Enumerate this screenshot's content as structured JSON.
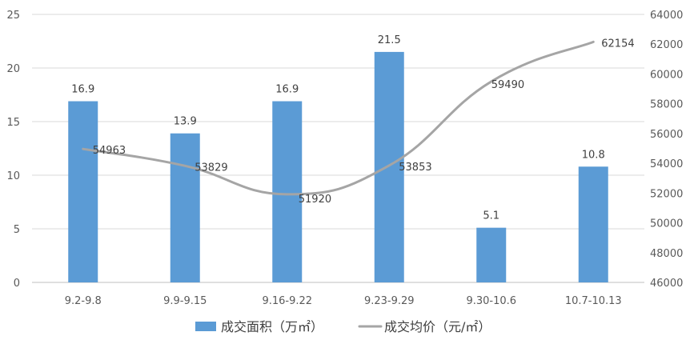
{
  "chart_data": {
    "type": "bar",
    "categories": [
      "9.2-9.8",
      "9.9-9.15",
      "9.16-9.22",
      "9.23-9.29",
      "9.30-10.6",
      "10.7-10.13"
    ],
    "series": [
      {
        "name": "成交面积（万㎡）",
        "type": "bar",
        "axis": "left",
        "color": "#5b9bd5",
        "values": [
          16.9,
          13.9,
          16.9,
          21.5,
          5.1,
          10.8
        ],
        "labels": [
          "16.9",
          "13.9",
          "16.9",
          "21.5",
          "5.1",
          "10.8"
        ]
      },
      {
        "name": "成交均价（元/㎡）",
        "type": "line",
        "axis": "right",
        "color": "#a5a5a5",
        "smooth": true,
        "values": [
          54963,
          53829,
          51920,
          53853,
          59490,
          62154
        ],
        "labels": [
          "54963",
          "53829",
          "51920",
          "53853",
          "59490",
          "62154"
        ]
      }
    ],
    "y_left": {
      "min": 0,
      "max": 25,
      "ticks": [
        "0",
        "5",
        "10",
        "15",
        "20",
        "25"
      ]
    },
    "y_right": {
      "min": 46000,
      "max": 64000,
      "ticks": [
        "46000",
        "48000",
        "50000",
        "52000",
        "54000",
        "56000",
        "58000",
        "60000",
        "62000",
        "64000"
      ]
    },
    "grid": true,
    "legend_position": "bottom",
    "title": "",
    "xlabel": "",
    "ylabel": ""
  }
}
